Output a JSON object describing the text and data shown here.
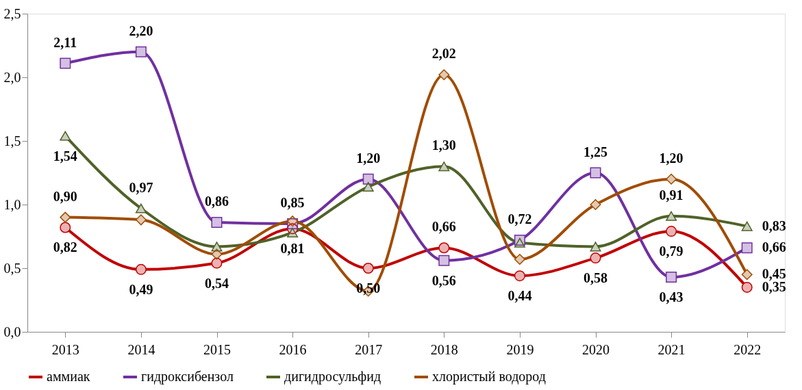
{
  "chart_data": {
    "type": "line",
    "categories": [
      "2013",
      "2014",
      "2015",
      "2016",
      "2017",
      "2018",
      "2019",
      "2020",
      "2021",
      "2022"
    ],
    "ylim": [
      0,
      2.5
    ],
    "yticks": [
      {
        "value": 0,
        "label": "0,0"
      },
      {
        "value": 0.5,
        "label": "0,5"
      },
      {
        "value": 1,
        "label": "1,0"
      },
      {
        "value": 1.5,
        "label": "1,5"
      },
      {
        "value": 2,
        "label": "2,0"
      },
      {
        "value": 2.5,
        "label": "2,5"
      }
    ],
    "grid": false,
    "legend": "bottom",
    "series": [
      {
        "name": "аммиак",
        "color": "#c00000",
        "marker": "circle",
        "values": [
          0.82,
          0.49,
          0.54,
          0.81,
          0.5,
          0.66,
          0.44,
          0.58,
          0.79,
          0.35
        ],
        "value_labels": [
          "0,82",
          "0,49",
          "0,54",
          "0,81",
          "0,50",
          "0,66",
          "0,44",
          "0,58",
          "0,79",
          "0,35"
        ]
      },
      {
        "name": "гидроксибензол",
        "color": "#7030a0",
        "marker": "square",
        "values": [
          2.11,
          2.2,
          0.86,
          0.85,
          1.2,
          0.56,
          0.72,
          1.25,
          0.43,
          0.66
        ],
        "value_labels": [
          "2,11",
          "2,20",
          "0,86",
          "0,85",
          "1,20",
          "0,56",
          "0,72",
          "1,25",
          "0,43",
          "0,66"
        ]
      },
      {
        "name": "дигидросульфид",
        "color": "#4f6228",
        "marker": "triangle",
        "values": [
          1.54,
          0.97,
          0.67,
          0.78,
          1.14,
          1.3,
          0.7,
          0.67,
          0.91,
          0.83
        ],
        "value_labels": [
          "1,54",
          "0,97",
          null,
          null,
          null,
          "1,30",
          null,
          null,
          "0,91",
          "0,83"
        ]
      },
      {
        "name": "хлористый водород",
        "color": "#a04c00",
        "marker": "diamond",
        "values": [
          0.9,
          0.88,
          0.61,
          0.87,
          0.32,
          2.02,
          0.57,
          1.0,
          1.2,
          0.45
        ],
        "value_labels": [
          "0,90",
          null,
          null,
          null,
          null,
          "2,02",
          null,
          null,
          "1,20",
          "0,45"
        ]
      }
    ]
  }
}
